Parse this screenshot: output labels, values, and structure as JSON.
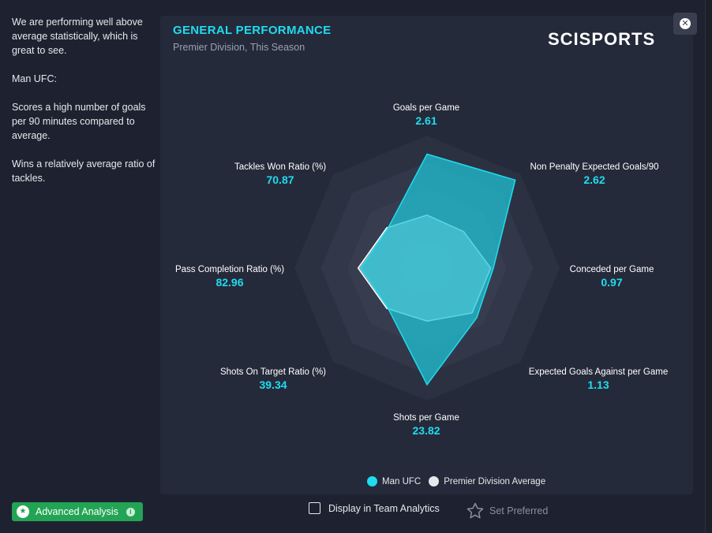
{
  "sidebar": {
    "paragraphs": [
      "We are performing well above average statistically, which is great to see.",
      "Man UFC:",
      "Scores a high number of goals per 90 minutes compared to average.",
      "Wins a relatively average ratio of tackles."
    ]
  },
  "panel": {
    "title": "GENERAL PERFORMANCE",
    "subtitle": "Premier Division, This Season",
    "brand": "SCISPORTS",
    "close_icon": "close-icon"
  },
  "colors": {
    "accent": "#1fdcf0",
    "team_fill": "#1fc7d9",
    "average_fill": "#e6e8ec",
    "button_green": "#23a455"
  },
  "chart_data": {
    "type": "radar",
    "axes": [
      {
        "label": "Goals per Game",
        "value": "2.61",
        "team": 0.86,
        "avg": 0.4
      },
      {
        "label": "Non Penalty Expected Goals/90",
        "value": "2.62",
        "team": 0.94,
        "avg": 0.39
      },
      {
        "label": "Conceded per Game",
        "value": "0.97",
        "team": 0.5,
        "avg": 0.48
      },
      {
        "label": "Expected Goals Against per Game",
        "value": "1.13",
        "team": 0.53,
        "avg": 0.48
      },
      {
        "label": "Shots per Game",
        "value": "23.82",
        "team": 0.88,
        "avg": 0.4
      },
      {
        "label": "Shots On Target Ratio (%)",
        "value": "39.34",
        "team": 0.42,
        "avg": 0.43
      },
      {
        "label": "Pass Completion Ratio (%)",
        "value": "82.96",
        "team": 0.5,
        "avg": 0.52
      },
      {
        "label": "Tackles Won Ratio (%)",
        "value": "70.87",
        "team": 0.42,
        "avg": 0.43
      }
    ],
    "series": [
      {
        "name": "Man UFC"
      },
      {
        "name": "Premier Division Average"
      }
    ]
  },
  "legend": {
    "team": "Man UFC",
    "average": "Premier Division Average"
  },
  "footer": {
    "advanced_label": "Advanced Analysis",
    "display_label": "Display in Team Analytics",
    "display_checked": false,
    "preferred_label": "Set Preferred"
  }
}
